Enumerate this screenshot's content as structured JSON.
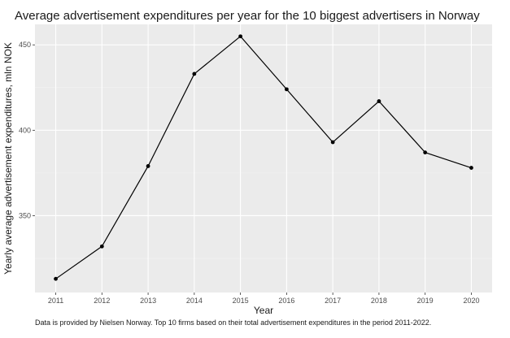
{
  "chart_data": {
    "type": "line",
    "title": "Average advertisement expenditures per year for the 10 biggest advertisers in Norway",
    "xlabel": "Year",
    "ylabel": "Yearly average advertisement expenditures, mln NOK",
    "caption": "Data is provided by Nielsen Norway. Top 10 firms based on their total advertisement expenditures in the period 2011-2022.",
    "x": [
      2011,
      2012,
      2013,
      2014,
      2015,
      2016,
      2017,
      2018,
      2019,
      2020
    ],
    "x_tick_labels": [
      "2011",
      "2012",
      "2013",
      "2014",
      "2015",
      "2016",
      "2017",
      "2018",
      "2019",
      "2020"
    ],
    "series": [
      {
        "values": [
          313,
          332,
          379,
          433,
          455,
          424,
          393,
          417,
          387,
          378
        ]
      }
    ],
    "xlim": [
      2010.55,
      2020.45
    ],
    "ylim": [
      305,
      462
    ],
    "y_ticks": [
      350,
      400,
      450
    ],
    "y_tick_labels": [
      "350",
      "400",
      "450"
    ],
    "grid": true,
    "legend": "none",
    "colors": {
      "panel_background": "#ebebeb",
      "grid_major": "#ffffff",
      "grid_minor": "#f5f5f5",
      "line": "#000000",
      "point": "#000000"
    }
  }
}
